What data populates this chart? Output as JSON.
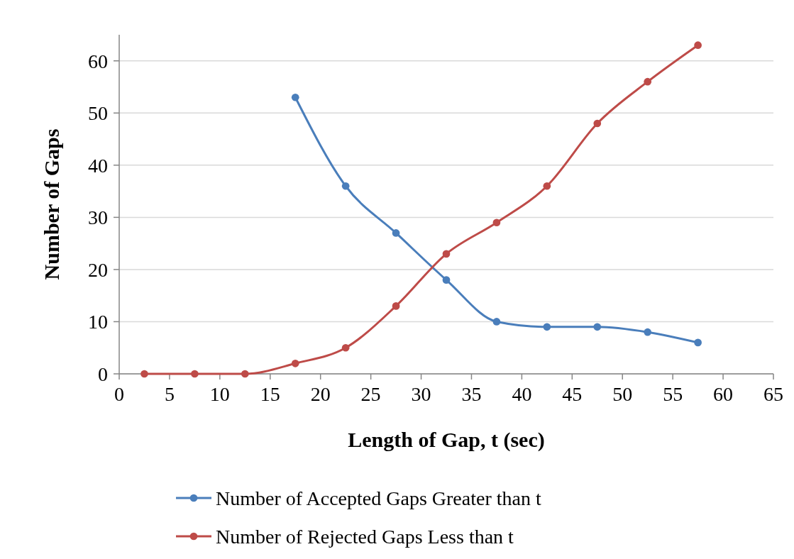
{
  "chart_data": {
    "type": "line",
    "xlabel": "Length of Gap, t (sec)",
    "ylabel": "Number of Gaps",
    "xlim": [
      0,
      65
    ],
    "xticks": [
      0,
      5,
      10,
      15,
      20,
      25,
      30,
      35,
      40,
      45,
      50,
      55,
      60,
      65
    ],
    "ylim": [
      0,
      65
    ],
    "yticks": [
      0,
      10,
      20,
      30,
      40,
      50,
      60
    ],
    "grid": "y",
    "legend": "bottom",
    "marker": "circle",
    "line_style": "solid",
    "series": [
      {
        "name": "Number of Accepted Gaps Greater than t",
        "color": "#4a7ebb",
        "x": [
          17.5,
          22.5,
          27.5,
          32.5,
          37.5,
          42.5,
          47.5,
          52.5,
          57.5
        ],
        "values": [
          53,
          36,
          27,
          18,
          10,
          9,
          9,
          8,
          6
        ]
      },
      {
        "name": "Number of Rejected Gaps Less than t",
        "color": "#be4b48",
        "x": [
          2.5,
          7.5,
          12.5,
          17.5,
          22.5,
          27.5,
          32.5,
          37.5,
          42.5,
          47.5,
          52.5,
          57.5
        ],
        "values": [
          0,
          0,
          0,
          2,
          5,
          13,
          23,
          29,
          36,
          48,
          56,
          63
        ]
      }
    ]
  }
}
